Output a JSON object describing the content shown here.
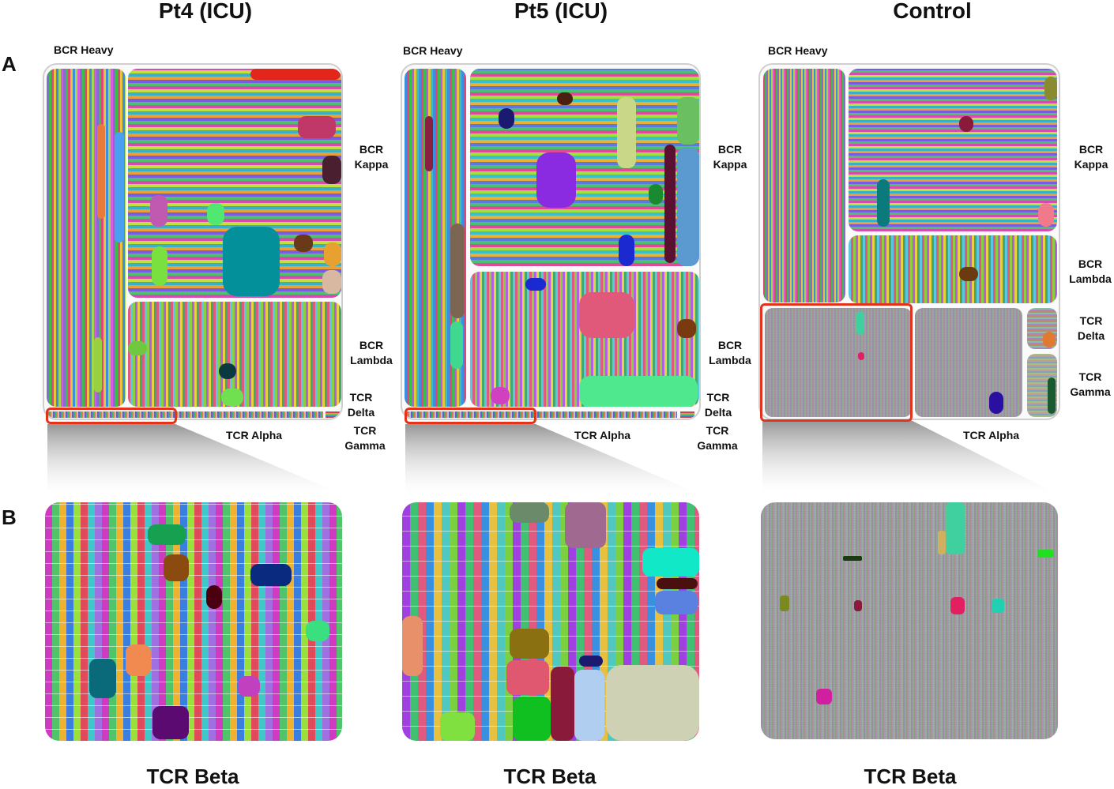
{
  "columns": [
    {
      "title": "Pt4 (ICU)",
      "bottom_title": "TCR Beta"
    },
    {
      "title": "Pt5 (ICU)",
      "bottom_title": "TCR Beta"
    },
    {
      "title": "Control",
      "bottom_title": "TCR Beta"
    }
  ],
  "panel_letters": {
    "a": "A",
    "b": "B"
  },
  "labels": {
    "bcr_heavy": "BCR Heavy",
    "bcr_kappa_1": "BCR",
    "bcr_kappa_2": "Kappa",
    "bcr_lambda_1": "BCR",
    "bcr_lambda_2": "Lambda",
    "tcr_delta_1": "TCR",
    "tcr_delta_2": "Delta",
    "tcr_gamma_1": "TCR",
    "tcr_gamma_2": "Gamma",
    "tcr_alpha": "TCR Alpha"
  },
  "colors": {
    "highlight": "#e2341c",
    "pt4_big_clone": "#04909a",
    "pt5_purple_clone": "#8a2be2",
    "pt5_pink_clone": "#e0587a",
    "pt5_mint_clone": "#4fe88e",
    "pt5_brown_clone": "#7a6652",
    "pt4_red_bar": "#e3261c"
  }
}
